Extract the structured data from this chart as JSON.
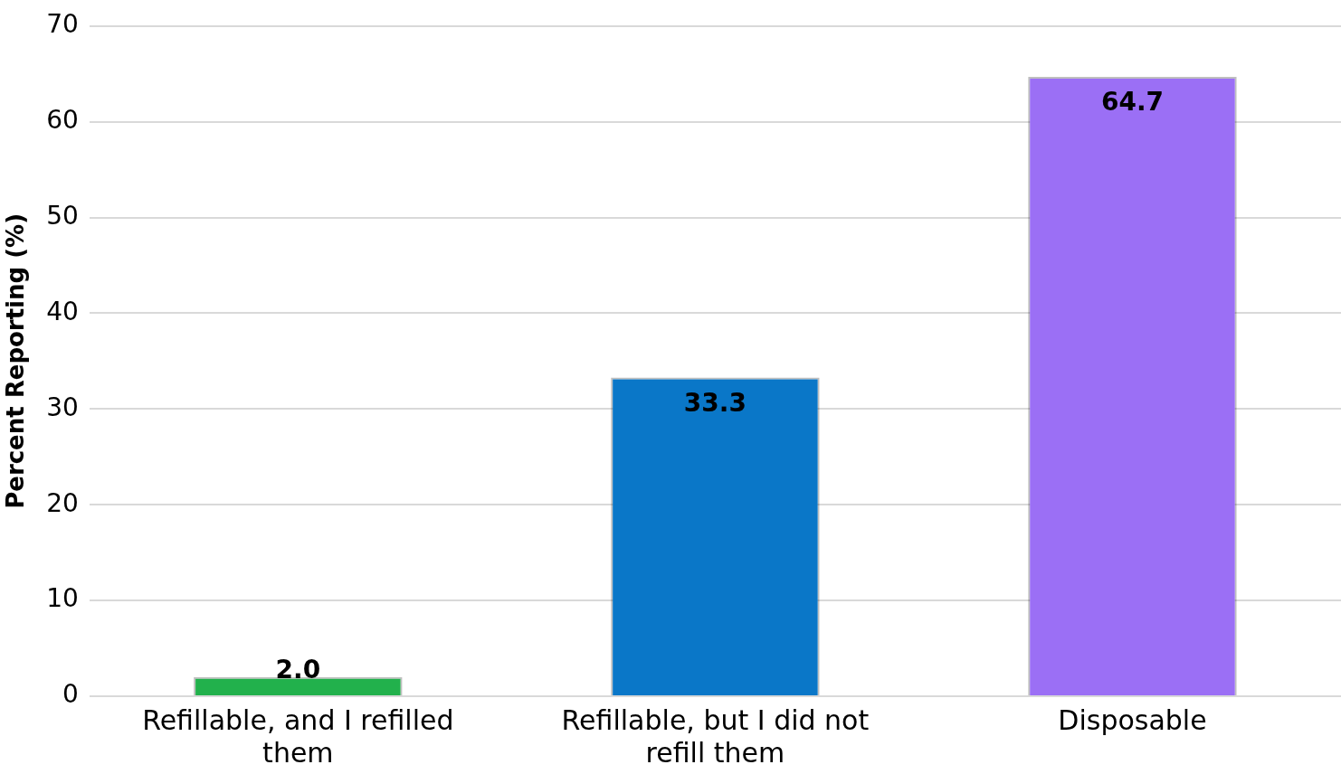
{
  "chart_data": {
    "type": "bar",
    "ylabel": "Percent Reporting (%)",
    "categories": [
      "Refillable, and I refilled them",
      "Refillable, but I did not refill them",
      "Disposable"
    ],
    "values": [
      2.0,
      33.3,
      64.7
    ],
    "colors": [
      "#22b14c",
      "#0a77c8",
      "#9b6ff5"
    ],
    "ylim": [
      0,
      70
    ],
    "yticks": [
      0,
      10,
      20,
      30,
      40,
      50,
      60,
      70
    ],
    "value_labels": [
      "2.0",
      "33.3",
      "64.7"
    ],
    "grid": "y",
    "legend": false
  }
}
